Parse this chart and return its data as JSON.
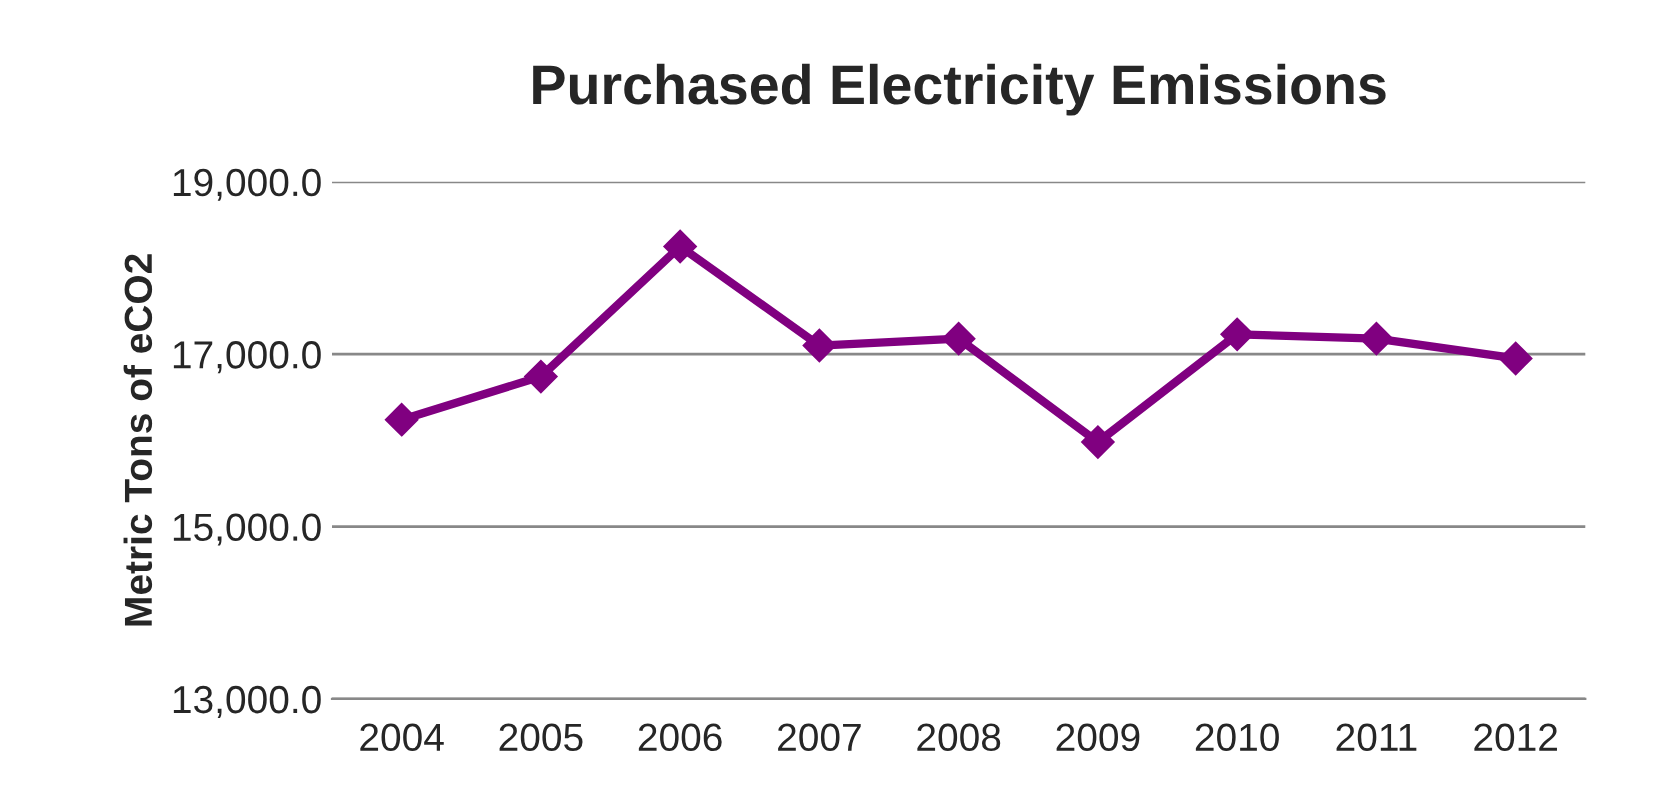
{
  "chart_data": {
    "type": "line",
    "title": "Purchased Electricity Emissions",
    "ylabel": "Metric Tons of eCO2",
    "categories": [
      "2004",
      "2005",
      "2006",
      "2007",
      "2008",
      "2009",
      "2010",
      "2011",
      "2012"
    ],
    "series": [
      {
        "color": "#800080",
        "values": [
          16240,
          16740,
          18250,
          17100,
          17180,
          15980,
          17230,
          17180,
          16950
        ]
      }
    ],
    "ylim": [
      13000,
      19000
    ],
    "yticks": [
      {
        "value": 13000,
        "label": "13,000.0"
      },
      {
        "value": 15000,
        "label": "15,000.0"
      },
      {
        "value": 17000,
        "label": "17,000.0"
      },
      {
        "value": 19000,
        "label": "19,000.0"
      }
    ],
    "grid": "y",
    "marker": "diamond",
    "line_style": "solid",
    "legend": false
  }
}
